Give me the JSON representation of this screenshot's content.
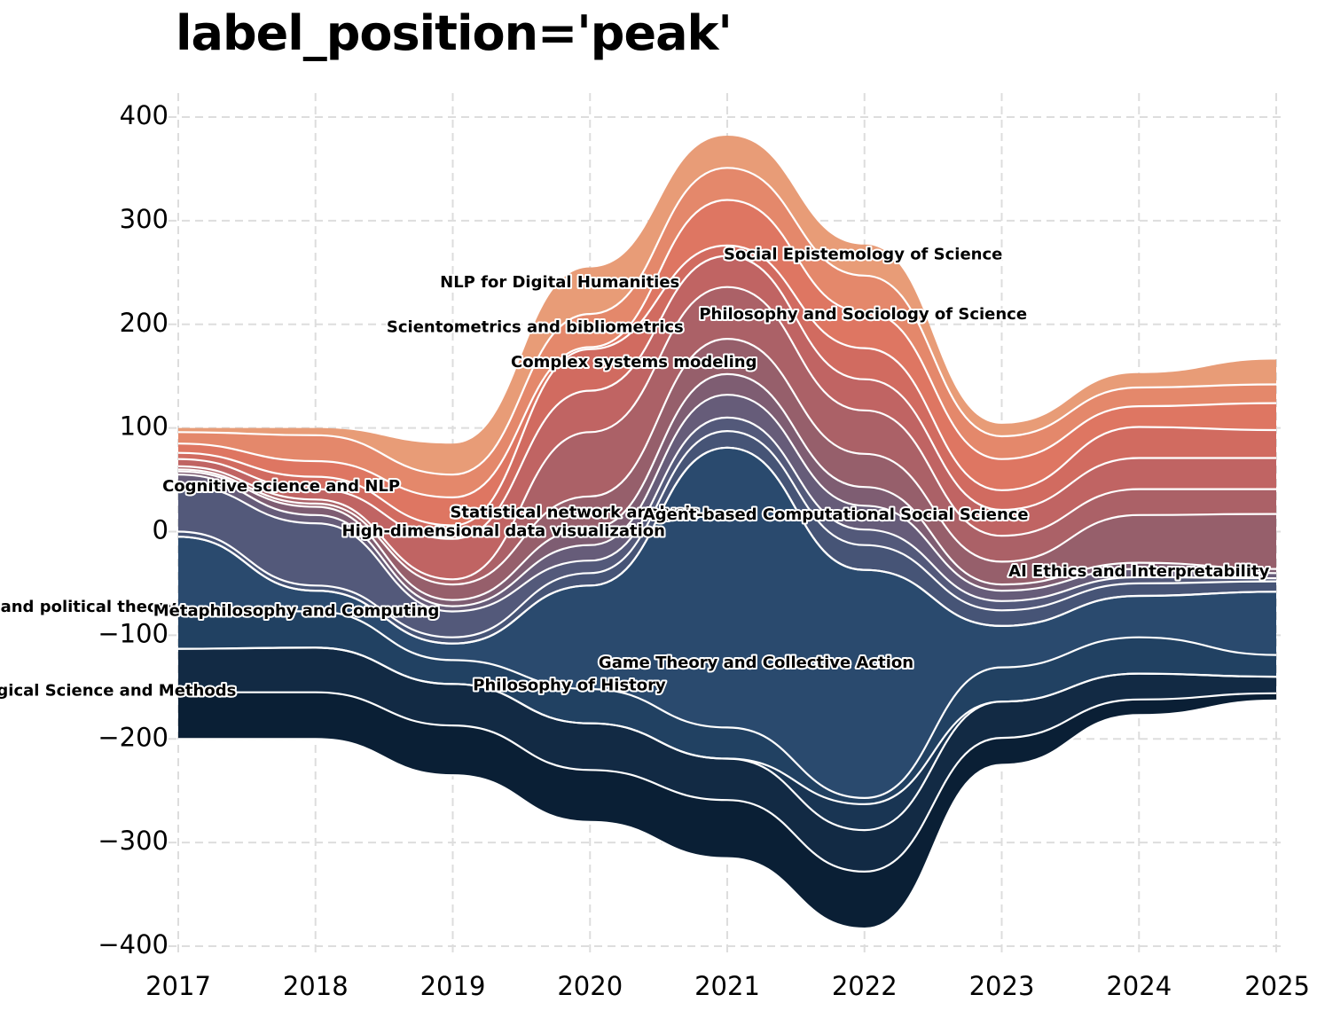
{
  "chart_data": {
    "type": "area",
    "title": "label_position='peak'",
    "xlabel": "",
    "ylabel": "",
    "x": [
      2017,
      2018,
      2019,
      2020,
      2021,
      2022,
      2023,
      2024,
      2025
    ],
    "ylim": [
      -410,
      420
    ],
    "xlim": [
      2017,
      2025
    ],
    "yticks": [
      400,
      300,
      200,
      100,
      0,
      -100,
      -200,
      -300,
      -400
    ],
    "ytick_labels": [
      "400",
      "300",
      "200",
      "100",
      "0",
      "−100",
      "−200",
      "−300",
      "−400"
    ],
    "grid": true,
    "baseline": [
      -200,
      -200,
      -235,
      -280,
      -315,
      -383,
      -225,
      -177,
      -163
    ],
    "colors": {
      "bottom": "#021426",
      "middle": "#4c5a7e",
      "top": "#e89c77",
      "separator": "#ffffff"
    },
    "series": [
      {
        "values": [
          0,
          0,
          0,
          0,
          0,
          0,
          0,
          0,
          0
        ]
      },
      {
        "values": [
          45,
          45,
          48,
          50,
          56,
          55,
          26,
          15,
          7
        ]
      },
      {
        "values": [
          42,
          43,
          40,
          45,
          40,
          40,
          35,
          25,
          16
        ]
      },
      {
        "values": [
          0,
          0,
          0,
          0,
          0,
          25,
          0,
          0,
          0
        ]
      },
      {
        "values": [
          38,
          35,
          23,
          33,
          30,
          6,
          33,
          35,
          21
        ]
      },
      {
        "values": [
          70,
          20,
          16,
          100,
          270,
          220,
          40,
          40,
          61
        ]
      },
      {
        "values": [
          0,
          0,
          0,
          0,
          0,
          0,
          0,
          0,
          0
        ]
      },
      {
        "values": [
          5,
          5,
          6,
          12,
          16,
          24,
          15,
          12,
          10
        ]
      },
      {
        "values": [
          45,
          60,
          25,
          12,
          13,
          15,
          9,
          6,
          3
        ]
      },
      {
        "values": [
          10,
          8,
          5,
          15,
          22,
          23,
          10,
          8,
          5
        ]
      },
      {
        "values": [
          3,
          8,
          6,
          16,
          20,
          18,
          6,
          6,
          4
        ]
      },
      {
        "values": [
          2,
          3,
          15,
          31,
          34,
          32,
          22,
          46,
          53
        ]
      },
      {
        "values": [
          3,
          4,
          5,
          62,
          50,
          42,
          25,
          25,
          24
        ]
      },
      {
        "values": [
          7,
          10,
          39,
          40,
          30,
          30,
          25,
          30,
          30
        ]
      },
      {
        "values": [
          6,
          12,
          13,
          40,
          10,
          30,
          19,
          30,
          27
        ]
      },
      {
        "values": [
          9,
          15,
          27,
          2,
          44,
          35,
          30,
          20,
          26
        ]
      },
      {
        "values": [
          11,
          25,
          22,
          32,
          31,
          35,
          22,
          18,
          18
        ]
      },
      {
        "values": [
          4,
          7,
          30,
          45,
          31,
          30,
          12,
          14,
          24
        ]
      }
    ],
    "labels": [
      {
        "text": "Psychological Science and Methods",
        "x": 2016.26,
        "y": -154
      },
      {
        "text": "Social and political theory",
        "x": 2016.13,
        "y": -73
      },
      {
        "text": "Metaphilosophy and Computing",
        "x": 2017.86,
        "y": -77
      },
      {
        "text": "Philosophy of History",
        "x": 2019.85,
        "y": -149
      },
      {
        "text": "Game Theory and Collective Action",
        "x": 2021.21,
        "y": -127
      },
      {
        "text": "High-dimensional data visualization",
        "x": 2019.37,
        "y": 0
      },
      {
        "text": "Statistical network analysis",
        "x": 2019.89,
        "y": 18
      },
      {
        "text": "Agent-based Computational Social Science",
        "x": 2021.79,
        "y": 16
      },
      {
        "text": "Cognitive science and NLP",
        "x": 2017.75,
        "y": 43
      },
      {
        "text": "AI Ethics and Interpretability",
        "x": 2024.0,
        "y": -39
      },
      {
        "text": "Complex systems modeling",
        "x": 2020.32,
        "y": 163
      },
      {
        "text": "Scientometrics and bibliometrics",
        "x": 2019.6,
        "y": 197
      },
      {
        "text": "NLP for Digital Humanities",
        "x": 2019.78,
        "y": 240
      },
      {
        "text": "Philosophy and Sociology of Science",
        "x": 2021.99,
        "y": 209
      },
      {
        "text": "Social Epistemology of Science",
        "x": 2021.99,
        "y": 267
      }
    ]
  }
}
